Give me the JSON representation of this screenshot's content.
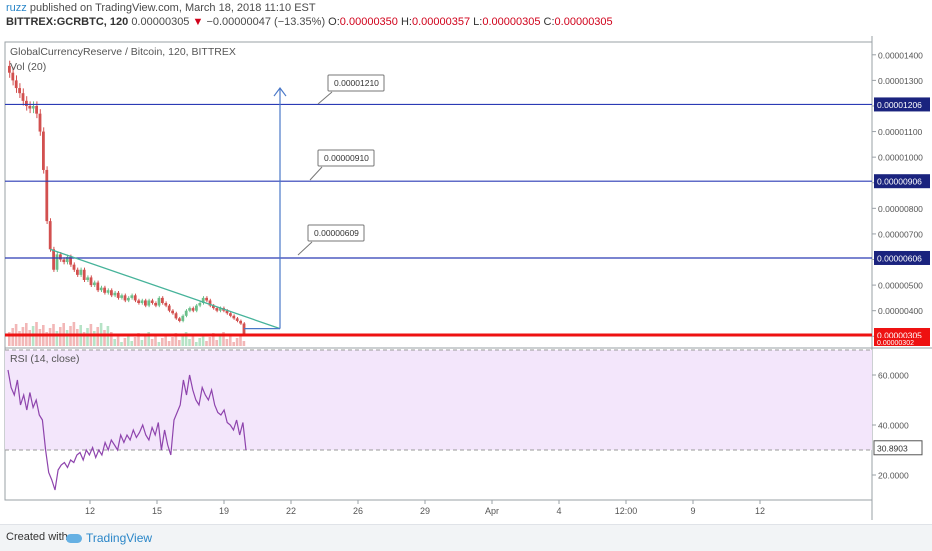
{
  "header": {
    "author": "ruzz",
    "published": "published on TradingView.com, March 18, 2018 11:10 EST",
    "symbol": "BITTREX:GCRBTC, 120",
    "last_price": "0.00000305",
    "change_arrow": "▼",
    "change": "−0.00000047 (−13.35%)",
    "ohlc": [
      {
        "label": "O:",
        "value": "0.00000350"
      },
      {
        "label": "H:",
        "value": "0.00000357"
      },
      {
        "label": "L:",
        "value": "0.00000305"
      },
      {
        "label": "C:",
        "value": "0.00000305"
      }
    ]
  },
  "main_pane": {
    "title": "GlobalCurrencyReserve / Bitcoin, 120, BITTREX",
    "volume_label": "Vol (20)"
  },
  "rsi_pane": {
    "title": "RSI (14, close)"
  },
  "footer": {
    "created_with": "Created with",
    "brand": "TradingView"
  },
  "colors": {
    "up": "#6bbf8a",
    "down": "#d2504f",
    "level_line": "#2b3bb5",
    "current_price": "#ee1111",
    "trendline": "#46b39a",
    "target_arrow": "#4a78c8",
    "rsi_line": "#8e44ad",
    "rsi_band": "#f3e6fb",
    "axis_label_bg": "#1a237e"
  },
  "chart_data": [
    {
      "type": "candlestick",
      "y_axis_ticks": [
        "0.00001400",
        "0.00001300",
        "0.00001200",
        "0.00001100",
        "0.00001000",
        "0.00000900",
        "0.00000800",
        "0.00000700",
        "0.00000600",
        "0.00000500",
        "0.00000400",
        "0.00000300"
      ],
      "x_axis_ticks": [
        "12",
        "15",
        "19",
        "22",
        "26",
        "29",
        "Apr",
        "4",
        "12:00",
        "9",
        "12"
      ],
      "ylim": [
        2.62e-06,
        1.45e-05
      ],
      "price_series": [
        [
          1.33e-05,
          1.3e-05,
          1.27e-05,
          1.25e-05,
          1.22e-05,
          1.2e-05,
          1.19e-05,
          1.2e-05,
          1.17e-05,
          1.1e-05,
          9.5e-06,
          7.5e-06,
          6.4e-06,
          5.6e-06
        ],
        [
          6.2e-06,
          6e-06,
          5.9e-06,
          6.1e-06,
          5.8e-06,
          5.6e-06,
          5.4e-06,
          5.6e-06,
          5.2e-06,
          5.3e-06,
          5e-06,
          5.1e-06,
          4.8e-06,
          4.9e-06,
          4.7e-06,
          4.8e-06,
          4.6e-06,
          4.7e-06,
          4.5e-06,
          4.6e-06,
          4.4e-06,
          4.5e-06,
          4.6e-06,
          4.4e-06,
          4.3e-06,
          4.4e-06,
          4.2e-06,
          4.4e-06,
          4.3e-06,
          4.2e-06,
          4.5e-06
        ],
        [
          4.3e-06,
          4.2e-06,
          4e-06,
          3.9e-06,
          3.7e-06,
          3.6e-06,
          3.8e-06,
          4e-06,
          4.1e-06,
          4e-06,
          4.2e-06,
          4.3e-06,
          4.5e-06,
          4.4e-06,
          4.2e-06,
          4.1e-06,
          4e-06,
          4.1e-06,
          4e-06,
          3.9e-06,
          3.8e-06,
          3.7e-06,
          3.6e-06,
          3.5e-06,
          3.05e-06
        ]
      ],
      "horizontal_levels": [
        {
          "price": 1.206e-05,
          "axis_label": "0.00001206"
        },
        {
          "price": 9.06e-06,
          "axis_label": "0.00000906"
        },
        {
          "price": 6.06e-06,
          "axis_label": "0.00000606"
        }
      ],
      "current_price": {
        "price": 3.05e-06,
        "axis_label": "0.00000305"
      },
      "volume_axis_label": "0.00000302",
      "callouts": [
        "0.00001210",
        "0.00000910",
        "0.00000609"
      ],
      "trendline": {
        "from": 6.4e-06,
        "to": 3.3e-06
      },
      "target_arrow": {
        "from": 3.3e-06,
        "to": 1.27e-05
      }
    },
    {
      "type": "line",
      "name": "RSI (14, close)",
      "y_axis_ticks": [
        "60.0000",
        "40.0000",
        "20.0000"
      ],
      "ylim": [
        10,
        70
      ],
      "bands": [
        30,
        70
      ],
      "current_axis_label": "30.8903",
      "values": [
        62,
        55,
        52,
        58,
        48,
        52,
        46,
        53,
        47,
        50,
        44,
        42,
        30,
        21,
        18,
        14,
        22,
        24,
        25,
        23,
        26,
        25,
        28,
        29,
        26,
        30,
        28,
        31,
        27,
        30,
        28,
        33,
        30,
        34,
        32,
        30,
        36,
        33,
        36,
        34,
        38,
        35,
        37,
        40,
        36,
        34,
        39,
        36,
        41,
        30,
        38,
        32,
        28,
        42,
        45,
        48,
        58,
        52,
        60,
        54,
        50,
        48,
        55,
        52,
        50,
        54,
        48,
        45,
        44,
        46,
        41,
        40,
        38,
        42,
        36,
        41,
        30
      ]
    }
  ]
}
